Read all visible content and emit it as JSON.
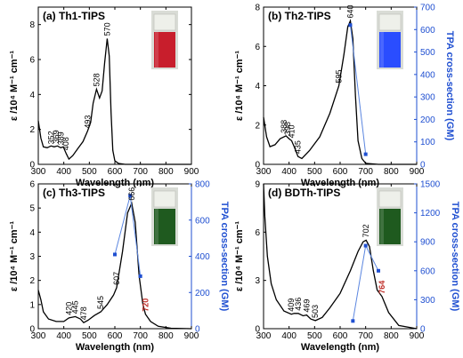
{
  "colors": {
    "axis": "#000000",
    "tpa": "#1f4fd1",
    "tpa_line": "#5b86e0",
    "red_label": "#c0302a"
  },
  "chart_data": [
    {
      "type": "line",
      "title": "(a) Th1-TIPS",
      "xlabel": "Wavelength (nm)",
      "ylabel": "ε /10⁴ M⁻¹ cm⁻¹",
      "xlim": [
        300,
        900
      ],
      "ylim": [
        0,
        9
      ],
      "xticks": [
        "300",
        "400",
        "500",
        "600",
        "700",
        "800",
        "900"
      ],
      "yticks": [
        "0",
        "2",
        "4",
        "6",
        "8"
      ],
      "vial_color": "#c81e2c",
      "series": [
        {
          "x": [
            300,
            310,
            320,
            335,
            350,
            362,
            375,
            388,
            398,
            410,
            420,
            435,
            455,
            475,
            493,
            505,
            515,
            528,
            540,
            550,
            560,
            570,
            578,
            585,
            592,
            600,
            615,
            640,
            700,
            800,
            900
          ],
          "y": [
            2.5,
            1.5,
            1.0,
            0.95,
            1.05,
            1.0,
            1.05,
            0.95,
            1.0,
            0.6,
            0.3,
            0.5,
            0.9,
            1.3,
            1.9,
            2.4,
            3.5,
            4.3,
            3.8,
            4.2,
            5.8,
            7.2,
            6.2,
            3.0,
            0.8,
            0.2,
            0.05,
            0,
            0,
            0,
            0
          ]
        }
      ],
      "peak_labels": [
        {
          "text": "352",
          "x": 350,
          "y": 1.0
        },
        {
          "text": "369",
          "x": 369,
          "y": 1.05
        },
        {
          "text": "389",
          "x": 389,
          "y": 0.95
        },
        {
          "text": "408",
          "x": 408,
          "y": 0.65
        },
        {
          "text": "493",
          "x": 493,
          "y": 1.9
        },
        {
          "text": "528",
          "x": 528,
          "y": 4.3
        },
        {
          "text": "570",
          "x": 570,
          "y": 7.2
        }
      ]
    },
    {
      "type": "line",
      "title": "(b) Th2-TIPS",
      "xlabel": "Wavelength (nm)",
      "ylabel": "ε /10⁴ M⁻¹ cm⁻¹",
      "y2label": "TPA cross-section (GM)",
      "xlim": [
        300,
        900
      ],
      "ylim": [
        0,
        8
      ],
      "y2lim": [
        0,
        700
      ],
      "xticks": [
        "300",
        "400",
        "500",
        "600",
        "700",
        "800",
        "900"
      ],
      "yticks": [
        "0",
        "2",
        "4",
        "6",
        "8"
      ],
      "y2ticks": [
        "0",
        "100",
        "200",
        "300",
        "400",
        "500",
        "600",
        "700"
      ],
      "vial_color": "#2a4dff",
      "series": [
        {
          "x": [
            300,
            312,
            325,
            345,
            365,
            388,
            400,
            410,
            420,
            435,
            450,
            480,
            520,
            560,
            595,
            615,
            630,
            640,
            650,
            660,
            670,
            685,
            700,
            750,
            800,
            900
          ],
          "y": [
            2.4,
            1.4,
            0.9,
            1.0,
            1.3,
            1.45,
            1.3,
            1.2,
            0.9,
            0.4,
            0.3,
            0.7,
            1.4,
            2.6,
            4.0,
            5.6,
            7.0,
            7.3,
            6.4,
            3.5,
            1.2,
            0.3,
            0.05,
            0,
            0,
            0
          ]
        }
      ],
      "tpa": {
        "x": [
          640,
          700
        ],
        "y": [
          620,
          45
        ]
      },
      "peak_labels": [
        {
          "text": "388",
          "x": 380,
          "y": 1.45
        },
        {
          "text": "398",
          "x": 395,
          "y": 1.35
        },
        {
          "text": "410",
          "x": 410,
          "y": 1.2
        },
        {
          "text": "435",
          "x": 435,
          "y": 0.4
        },
        {
          "text": "595",
          "x": 595,
          "y": 4.0
        },
        {
          "text": "640",
          "x": 640,
          "y": 7.3
        }
      ]
    },
    {
      "type": "line",
      "title": "(c) Th3-TIPS",
      "xlabel": "Wavelength (nm)",
      "ylabel": "ε /10⁴ M⁻¹ cm⁻¹",
      "y2label": "TPA cross-section (GM)",
      "xlim": [
        300,
        900
      ],
      "ylim": [
        0,
        6
      ],
      "y2lim": [
        0,
        800
      ],
      "xticks": [
        "300",
        "400",
        "500",
        "600",
        "700",
        "800",
        "900"
      ],
      "yticks": [
        "0",
        "1",
        "2",
        "3",
        "4",
        "5",
        "6"
      ],
      "y2ticks": [
        "0",
        "200",
        "400",
        "600",
        "800"
      ],
      "vial_color": "#1f5a1f",
      "series": [
        {
          "x": [
            300,
            310,
            320,
            340,
            370,
            400,
            420,
            445,
            465,
            478,
            495,
            520,
            545,
            570,
            595,
            607,
            630,
            650,
            666,
            680,
            695,
            710,
            720,
            740,
            770,
            820,
            900
          ],
          "y": [
            1.6,
            1.2,
            0.7,
            0.4,
            0.3,
            0.3,
            0.45,
            0.5,
            0.4,
            0.25,
            0.35,
            0.55,
            0.7,
            1.0,
            1.4,
            1.7,
            3.2,
            4.8,
            5.2,
            4.4,
            2.2,
            1.0,
            0.6,
            0.3,
            0.1,
            0.02,
            0
          ]
        }
      ],
      "tpa": {
        "x": [
          600,
          660,
          700
        ],
        "y": [
          410,
          735,
          290
        ]
      },
      "peak_labels": [
        {
          "text": "420",
          "x": 420,
          "y": 0.45
        },
        {
          "text": "445",
          "x": 445,
          "y": 0.5
        },
        {
          "text": "478",
          "x": 478,
          "y": 0.25
        },
        {
          "text": "545",
          "x": 545,
          "y": 0.7
        },
        {
          "text": "607",
          "x": 607,
          "y": 1.7
        },
        {
          "text": "666",
          "x": 666,
          "y": 5.2
        }
      ],
      "red_label": {
        "text": "720",
        "x": 720,
        "y": 0.6
      }
    },
    {
      "type": "line",
      "title": "(d) BDTh-TIPS",
      "xlabel": "Wavelength (nm)",
      "ylabel": "ε /10⁴ M⁻¹ cm⁻¹",
      "y2label": "TPA cross-section (GM)",
      "xlim": [
        300,
        900
      ],
      "ylim": [
        0,
        9
      ],
      "y2lim": [
        0,
        1500
      ],
      "xticks": [
        "300",
        "400",
        "500",
        "600",
        "700",
        "800",
        "900"
      ],
      "yticks": [
        "0",
        "3",
        "6",
        "9"
      ],
      "y2ticks": [
        "0",
        "300",
        "600",
        "900",
        "1200",
        "1500"
      ],
      "vial_color": "#1f5a1f",
      "series": [
        {
          "x": [
            300,
            305,
            315,
            330,
            350,
            380,
            409,
            420,
            436,
            455,
            469,
            485,
            503,
            530,
            560,
            600,
            640,
            670,
            690,
            702,
            715,
            730,
            745,
            764,
            790,
            830,
            900
          ],
          "y": [
            9.0,
            7.0,
            4.5,
            2.8,
            1.8,
            1.1,
            0.9,
            0.95,
            0.95,
            0.8,
            0.85,
            0.6,
            0.5,
            0.7,
            1.3,
            2.2,
            3.6,
            4.8,
            5.4,
            5.5,
            5.1,
            3.6,
            2.4,
            2.0,
            1.0,
            0.2,
            0
          ]
        }
      ],
      "tpa": {
        "x": [
          650,
          700,
          750
        ],
        "y": [
          80,
          860,
          600
        ]
      },
      "peak_labels": [
        {
          "text": "409",
          "x": 409,
          "y": 0.9
        },
        {
          "text": "436",
          "x": 436,
          "y": 0.95
        },
        {
          "text": "469",
          "x": 469,
          "y": 0.85
        },
        {
          "text": "503",
          "x": 503,
          "y": 0.5
        },
        {
          "text": "702",
          "x": 702,
          "y": 5.5
        }
      ],
      "red_label": {
        "text": "764",
        "x": 764,
        "y": 2.0
      }
    }
  ]
}
